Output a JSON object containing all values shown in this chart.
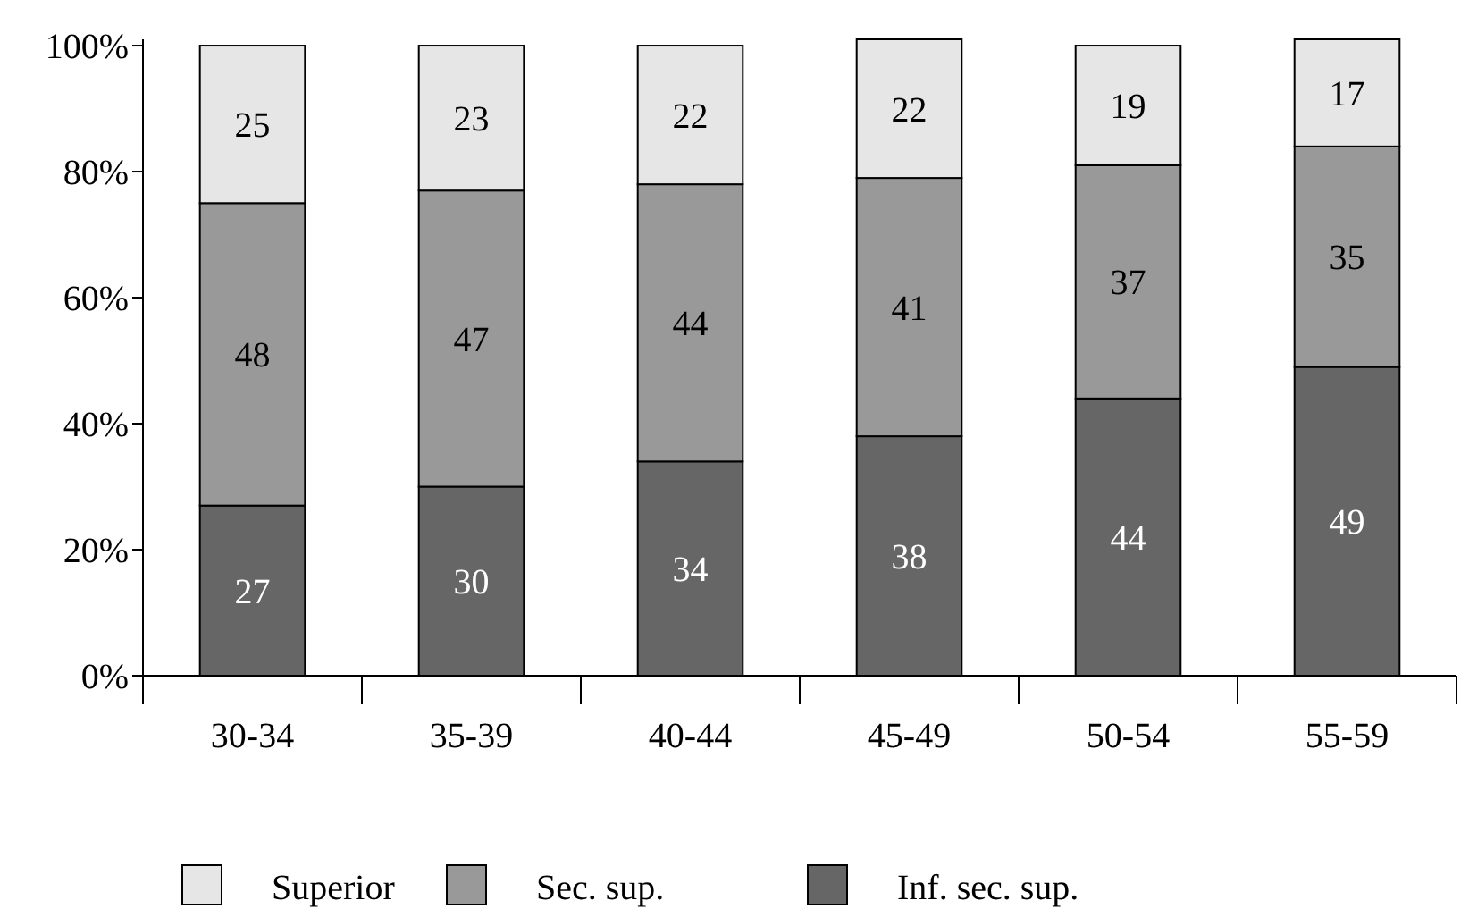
{
  "chart_data": {
    "type": "bar",
    "stacked": true,
    "categories": [
      "30-34",
      "35-39",
      "40-44",
      "45-49",
      "50-54",
      "55-59"
    ],
    "series": [
      {
        "name": "Inf. sec. sup.",
        "color": "#666666",
        "values": [
          27,
          30,
          34,
          38,
          44,
          49
        ]
      },
      {
        "name": "Sec. sup.",
        "color": "#999999",
        "values": [
          48,
          47,
          44,
          41,
          37,
          35
        ]
      },
      {
        "name": "Superior",
        "color": "#e6e6e6",
        "values": [
          25,
          23,
          22,
          22,
          19,
          17
        ]
      }
    ],
    "ylim": [
      0,
      101
    ],
    "yticks": [
      {
        "value": 0,
        "label": "0%"
      },
      {
        "value": 20,
        "label": "20%"
      },
      {
        "value": 40,
        "label": "40%"
      },
      {
        "value": 60,
        "label": "60%"
      },
      {
        "value": 80,
        "label": "80%"
      },
      {
        "value": 100,
        "label": "100%"
      }
    ],
    "data_labels": true,
    "legend": "bottom",
    "grid": false
  }
}
